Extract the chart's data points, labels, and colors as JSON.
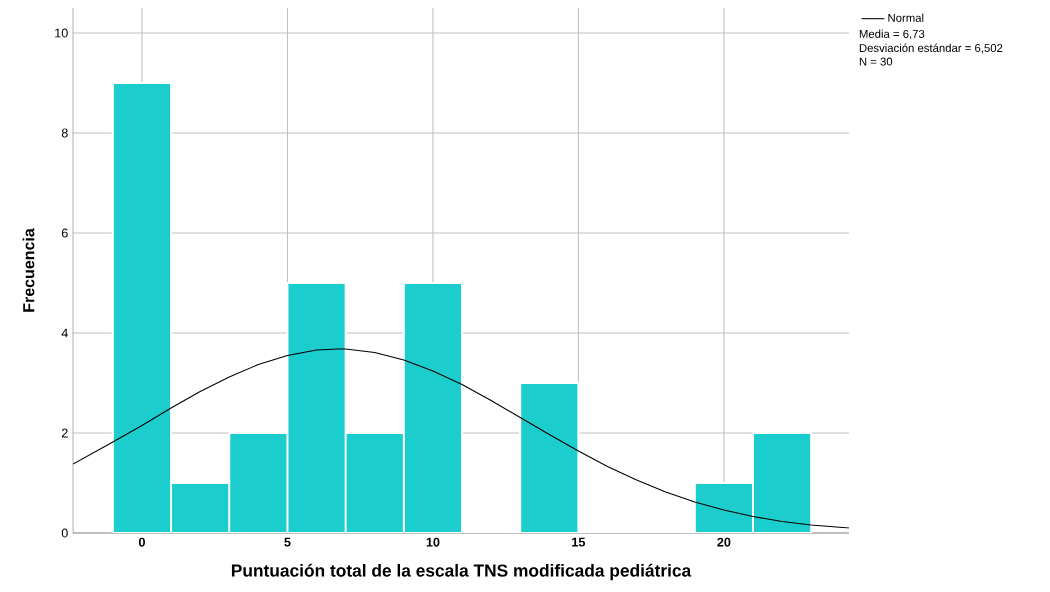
{
  "chart_data": {
    "type": "histogram",
    "xlabel": "Puntuación total de la escala TNS modificada pediátrica",
    "ylabel": "Frecuencia",
    "bins": [
      -1,
      1,
      3,
      5,
      7,
      9,
      11,
      13,
      15,
      17,
      19,
      21,
      23
    ],
    "values": [
      9,
      1,
      2,
      5,
      2,
      5,
      0,
      3,
      0,
      0,
      1,
      2
    ],
    "color": "#1ccdcd",
    "series": [
      {
        "name": "Normal",
        "type": "line",
        "color": "#000000",
        "x": [
          -2.37,
          -1,
          0,
          1,
          2,
          3,
          4,
          5,
          6,
          6.73,
          7,
          8,
          9,
          10,
          11,
          12,
          13,
          14,
          15,
          16,
          17,
          18,
          19,
          20,
          21,
          22,
          23,
          24.3
        ],
        "values": [
          1.38,
          1.82,
          2.15,
          2.5,
          2.83,
          3.12,
          3.37,
          3.55,
          3.66,
          3.68,
          3.68,
          3.61,
          3.46,
          3.24,
          2.97,
          2.65,
          2.31,
          1.97,
          1.64,
          1.33,
          1.06,
          0.82,
          0.62,
          0.46,
          0.33,
          0.23,
          0.16,
          0.1
        ]
      }
    ],
    "xlim": [
      -2.37,
      24.3
    ],
    "ylim": [
      0,
      10.5
    ],
    "xticks": [
      0,
      5,
      10,
      15,
      20
    ],
    "yticks": [
      0,
      2,
      4,
      6,
      8,
      10
    ],
    "grid": true,
    "legend": "top right",
    "annotations": [
      "Media = 6,73",
      "Desviación estándar = 6,502",
      "N = 30"
    ]
  }
}
